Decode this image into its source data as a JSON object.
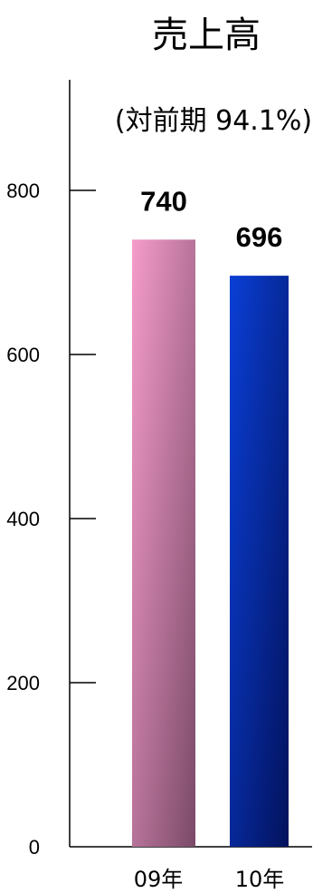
{
  "chart_data": {
    "type": "bar",
    "title": "売上高",
    "subtitle": "(対前期 94.1%)",
    "categories": [
      "09年",
      "10年"
    ],
    "values": [
      740,
      696
    ],
    "value_labels": [
      "740",
      "696"
    ],
    "yticks": [
      0,
      200,
      400,
      600,
      800
    ],
    "ylim": [
      0,
      800
    ],
    "grid": false,
    "colors": {
      "bar_1_light": "#f59ccb",
      "bar_1_dark": "#7a4a68",
      "bar_2_light": "#0a3fd6",
      "bar_2_dark": "#03125c"
    }
  }
}
